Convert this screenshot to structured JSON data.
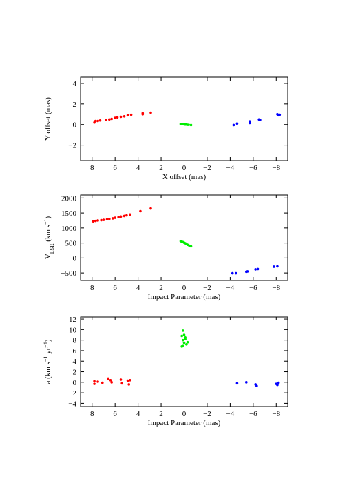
{
  "chart_data": [
    {
      "type": "scatter",
      "xlabel": [
        {
          "text": "X offset (mas)"
        }
      ],
      "ylabel": [
        {
          "text": "Y offset (mas)"
        }
      ],
      "xlim": [
        9,
        -9
      ],
      "xticks": [
        8,
        6,
        4,
        2,
        0,
        {
          "value": -2,
          "label": "−2"
        },
        {
          "value": -4,
          "label": "−4"
        },
        {
          "value": -6,
          "label": "−6"
        },
        {
          "value": -8,
          "label": "−8"
        }
      ],
      "ylim": [
        -3.5,
        4.6
      ],
      "yticks": [
        4,
        2,
        0,
        {
          "value": -2,
          "label": "−2"
        }
      ],
      "series": [
        {
          "color": "#ff0000",
          "x": [
            7.8,
            7.7,
            7.5,
            7.3,
            6.8,
            6.5,
            6.3,
            6.0,
            5.8,
            5.5,
            5.2,
            4.9,
            4.6,
            3.6,
            3.6,
            2.9
          ],
          "y": [
            0.2,
            0.35,
            0.35,
            0.4,
            0.45,
            0.5,
            0.55,
            0.65,
            0.7,
            0.75,
            0.8,
            0.9,
            0.95,
            1.0,
            1.1,
            1.15
          ]
        },
        {
          "color": "#00ee00",
          "x": [
            0.3,
            0.1,
            0,
            -0.1,
            -0.2,
            -0.3,
            -0.4,
            -0.6
          ],
          "y": [
            0.05,
            0.05,
            0.02,
            0,
            0,
            -0.02,
            -0.03,
            -0.05
          ]
        },
        {
          "color": "#0000ff",
          "x": [
            -4.3,
            -4.6,
            -5.7,
            -5.7,
            -6.5,
            -6.6,
            -8.1,
            -8.2,
            -8.3
          ],
          "y": [
            -0.05,
            0.1,
            0.15,
            0.3,
            0.5,
            0.45,
            1.0,
            0.9,
            0.95
          ]
        }
      ]
    },
    {
      "type": "scatter",
      "xlabel": [
        {
          "text": "Impact Parameter (mas)"
        }
      ],
      "ylabel": [
        {
          "text": "V"
        },
        {
          "text": "LSR",
          "shift": "sub"
        },
        {
          "text": " (km s"
        },
        {
          "text": "−1",
          "shift": "super"
        },
        {
          "text": ")"
        }
      ],
      "xlim": [
        9,
        -9
      ],
      "xticks": [
        8,
        6,
        4,
        2,
        0,
        {
          "value": -2,
          "label": "−2"
        },
        {
          "value": -4,
          "label": "−4"
        },
        {
          "value": -6,
          "label": "−6"
        },
        {
          "value": -8,
          "label": "−8"
        }
      ],
      "ylim": [
        -750,
        2100
      ],
      "yticks": [
        2000,
        1500,
        1000,
        500,
        0,
        {
          "value": -500,
          "label": "−500"
        }
      ],
      "series": [
        {
          "color": "#ff0000",
          "x": [
            7.9,
            7.7,
            7.5,
            7.2,
            7.0,
            6.7,
            6.5,
            6.2,
            6.0,
            5.7,
            5.5,
            5.2,
            5.0,
            4.7,
            3.8,
            2.9
          ],
          "y": [
            1220,
            1235,
            1250,
            1260,
            1270,
            1290,
            1300,
            1320,
            1340,
            1360,
            1380,
            1400,
            1420,
            1450,
            1560,
            1650
          ]
        },
        {
          "color": "#00ee00",
          "x": [
            0.3,
            0.2,
            0.1,
            0,
            -0.1,
            -0.2,
            -0.3,
            -0.45,
            -0.6
          ],
          "y": [
            560,
            545,
            530,
            510,
            490,
            470,
            440,
            410,
            390
          ]
        },
        {
          "color": "#0000ff",
          "x": [
            -4.2,
            -4.5,
            -5.4,
            -5.5,
            -6.2,
            -6.4,
            -7.8,
            -8.1
          ],
          "y": [
            -510,
            -510,
            -460,
            -450,
            -380,
            -370,
            -290,
            -280
          ]
        }
      ]
    },
    {
      "type": "scatter",
      "xlabel": [
        {
          "text": "Impact Parameter (mas)"
        }
      ],
      "ylabel": [
        {
          "text": "a (km s"
        },
        {
          "text": "−1",
          "shift": "super"
        },
        {
          "text": " yr"
        },
        {
          "text": "−1",
          "shift": "super"
        },
        {
          "text": ")"
        }
      ],
      "xlim": [
        9,
        -9
      ],
      "xticks": [
        8,
        6,
        4,
        2,
        0,
        {
          "value": -2,
          "label": "−2"
        },
        {
          "value": -4,
          "label": "−4"
        },
        {
          "value": -6,
          "label": "−6"
        },
        {
          "value": -8,
          "label": "−8"
        }
      ],
      "ylim": [
        -4.6,
        12.4
      ],
      "yticks": [
        12,
        10,
        8,
        6,
        4,
        2,
        0,
        {
          "value": -2,
          "label": "−2"
        },
        {
          "value": -4,
          "label": "−4"
        }
      ],
      "series": [
        {
          "color": "#ff0000",
          "x": [
            7.8,
            7.8,
            7.5,
            7.1,
            6.6,
            6.4,
            6.3,
            5.5,
            5.4,
            4.9,
            4.7,
            4.8
          ],
          "y": [
            0.2,
            -0.3,
            0.1,
            -0.1,
            0.7,
            0.4,
            0,
            0.5,
            -0.2,
            0.3,
            0.4,
            -0.4
          ]
        },
        {
          "color": "#00ee00",
          "x": [
            0.1,
            0,
            -0.1,
            0.1,
            0,
            -0.2,
            0.1,
            -0.1,
            0.2,
            -0.3,
            0.2
          ],
          "y": [
            9.8,
            9,
            8.5,
            8,
            7.5,
            7.2,
            7,
            8.2,
            8.8,
            7.6,
            6.8
          ]
        },
        {
          "color": "#0000ff",
          "x": [
            -4.6,
            -5.4,
            -6.2,
            -6.3,
            -8,
            -8.1,
            -8.2
          ],
          "y": [
            -0.2,
            0,
            -0.4,
            -0.7,
            -0.3,
            -0.5,
            -0.1
          ]
        }
      ]
    }
  ]
}
